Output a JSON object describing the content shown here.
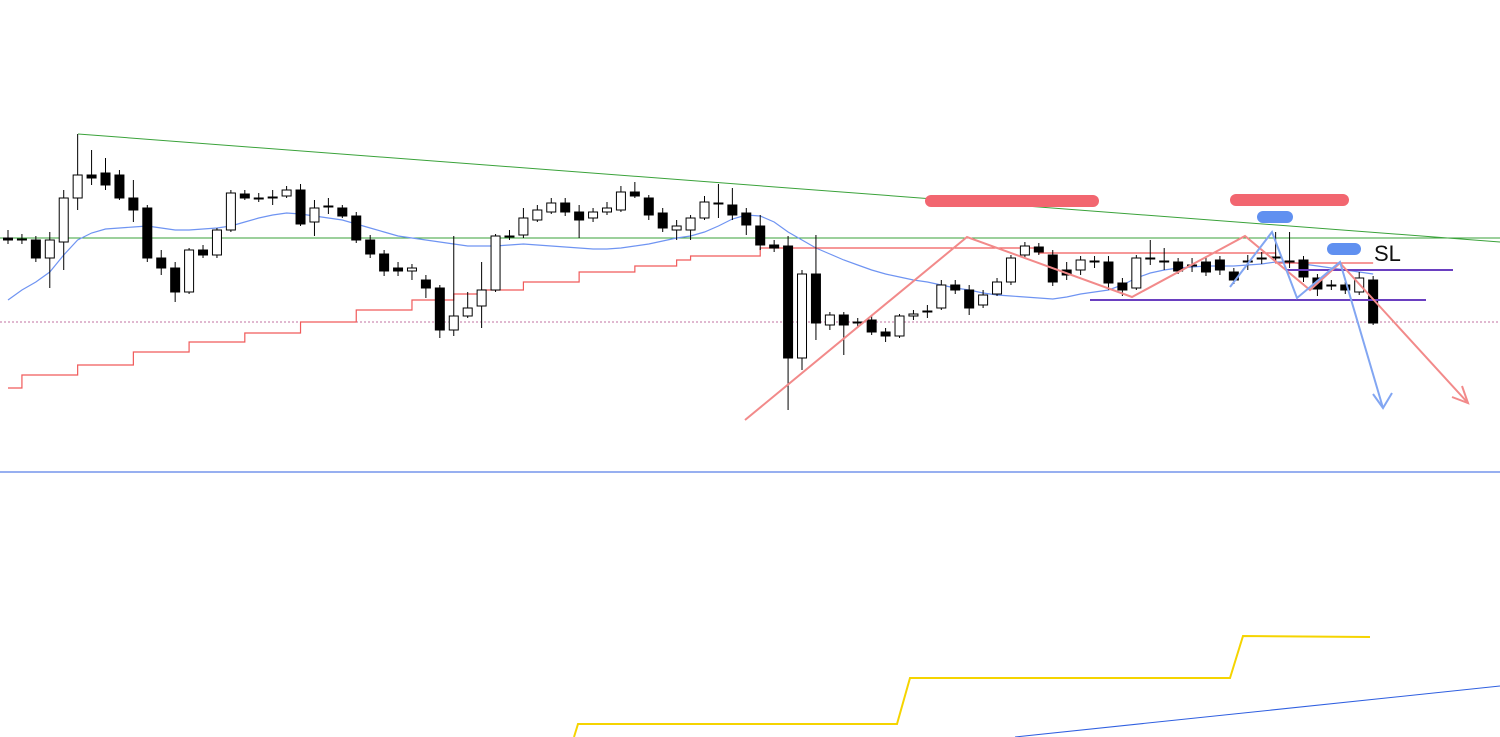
{
  "chart_data": {
    "type": "candlestick",
    "open": [
      499,
      497,
      497,
      479,
      495,
      539,
      562,
      564,
      562,
      539,
      529,
      479,
      469,
      445,
      487,
      482,
      507,
      543,
      539,
      540,
      541,
      547,
      515,
      530,
      529,
      521,
      497,
      483,
      469,
      466,
      457,
      449,
      407,
      421,
      431,
      447,
      500,
      502,
      517,
      525,
      534,
      525,
      519,
      525,
      527,
      545,
      539,
      524,
      507,
      507,
      519,
      534,
      532,
      524,
      511,
      492,
      491,
      379,
      463,
      412,
      422,
      415,
      417,
      405,
      401,
      421,
      425,
      429,
      452,
      447,
      432,
      443,
      455,
      482,
      490,
      482,
      467,
      467,
      475,
      475,
      454,
      449,
      478,
      475,
      475,
      472,
      475,
      477,
      465,
      475,
      478,
      479,
      475,
      477,
      459,
      451,
      452,
      445,
      457
    ],
    "high": [
      507,
      503,
      501,
      505,
      547,
      603,
      587,
      579,
      567,
      557,
      532,
      487,
      475,
      489,
      492,
      509,
      547,
      547,
      544,
      547,
      551,
      553,
      537,
      539,
      532,
      525,
      502,
      487,
      475,
      473,
      462,
      452,
      501,
      445,
      475,
      503,
      507,
      529,
      532,
      539,
      539,
      532,
      529,
      535,
      551,
      555,
      542,
      529,
      517,
      522,
      541,
      553,
      549,
      529,
      522,
      497,
      501,
      467,
      502,
      425,
      425,
      419,
      421,
      409,
      423,
      427,
      432,
      457,
      457,
      452,
      447,
      459,
      482,
      495,
      494,
      487,
      475,
      481,
      481,
      481,
      459,
      482,
      497,
      489,
      479,
      479,
      479,
      481,
      469,
      482,
      485,
      505,
      505,
      481,
      463,
      457,
      455,
      465,
      461
    ],
    "low": [
      493,
      493,
      475,
      449,
      467,
      527,
      552,
      547,
      537,
      515,
      475,
      462,
      435,
      443,
      479,
      479,
      505,
      537,
      535,
      532,
      539,
      511,
      501,
      523,
      519,
      494,
      479,
      461,
      461,
      457,
      439,
      399,
      401,
      419,
      409,
      445,
      497,
      499,
      515,
      523,
      521,
      499,
      515,
      522,
      525,
      539,
      517,
      505,
      497,
      497,
      517,
      519,
      517,
      502,
      487,
      485,
      327,
      367,
      397,
      407,
      382,
      409,
      402,
      395,
      399,
      417,
      419,
      427,
      443,
      422,
      429,
      441,
      452,
      479,
      482,
      451,
      457,
      462,
      469,
      447,
      441,
      447,
      472,
      467,
      463,
      465,
      461,
      462,
      453,
      467,
      473,
      475,
      469,
      455,
      441,
      447,
      443,
      442,
      412
    ],
    "close": [
      497,
      498,
      479,
      497,
      539,
      562,
      559,
      552,
      539,
      527,
      479,
      469,
      445,
      487,
      482,
      507,
      544,
      539,
      538,
      539,
      547,
      513,
      529,
      531,
      521,
      497,
      483,
      466,
      466,
      469,
      449,
      407,
      421,
      429,
      447,
      501,
      501,
      519,
      527,
      534,
      525,
      517,
      525,
      529,
      545,
      541,
      522,
      509,
      511,
      519,
      535,
      533,
      522,
      512,
      492,
      489,
      379,
      463,
      414,
      422,
      412,
      414,
      405,
      401,
      421,
      423,
      426,
      452,
      447,
      429,
      442,
      455,
      479,
      491,
      485,
      455,
      462,
      477,
      476,
      454,
      447,
      479,
      479,
      476,
      466,
      471,
      465,
      467,
      457,
      476,
      479,
      480,
      476,
      460,
      448,
      452,
      447,
      459,
      414
    ],
    "up_color": "#ffffff",
    "down_color": "#000000",
    "series": [
      {
        "type": "line",
        "color": "#6f94f2",
        "values": [
          437,
          447,
          455,
          465,
          482,
          497,
          504,
          508,
          509,
          510,
          511,
          509,
          507,
          507,
          508,
          509,
          511,
          515,
          519,
          522,
          524,
          523,
          521,
          519,
          517,
          513,
          509,
          505,
          501,
          499,
          497,
          495,
          493,
          491,
          491,
          491,
          492,
          493,
          492,
          491,
          490,
          489,
          488,
          488,
          489,
          491,
          493,
          496,
          499,
          501,
          505,
          511,
          518,
          522,
          521,
          515,
          505,
          497,
          489,
          483,
          477,
          472,
          467,
          463,
          460,
          457,
          455,
          452,
          449,
          447,
          444,
          442,
          441,
          440,
          439,
          438,
          440,
          443,
          445,
          447,
          452,
          459,
          464,
          467,
          469,
          470,
          471,
          471,
          471,
          472,
          473,
          475,
          475,
          473,
          471,
          469,
          467,
          465,
          463
        ]
      },
      {
        "type": "step",
        "color": "#f05a5a",
        "values": [
          349,
          362,
          362,
          362,
          362,
          372,
          372,
          372,
          372,
          385,
          385,
          385,
          385,
          395,
          395,
          395,
          395,
          404,
          404,
          404,
          404,
          415,
          415,
          415,
          415,
          427,
          427,
          427,
          427,
          437,
          437,
          437,
          443,
          443,
          447,
          447,
          447,
          455,
          455,
          455,
          455,
          465,
          465,
          465,
          465,
          471,
          471,
          471,
          477,
          481,
          481,
          481,
          481,
          481,
          489,
          489,
          489,
          489,
          489,
          489,
          489,
          489,
          489,
          489,
          489,
          489,
          489,
          489,
          489,
          489,
          489,
          489,
          489,
          489,
          484,
          484,
          484,
          484,
          484,
          484,
          484,
          484,
          484,
          484,
          484,
          484,
          484,
          484,
          484,
          484,
          484,
          474,
          474,
          474,
          474,
          474,
          474,
          474,
          474
        ]
      }
    ],
    "ylim": [
      0,
      737
    ],
    "annotations": {
      "sl": "SL"
    }
  }
}
